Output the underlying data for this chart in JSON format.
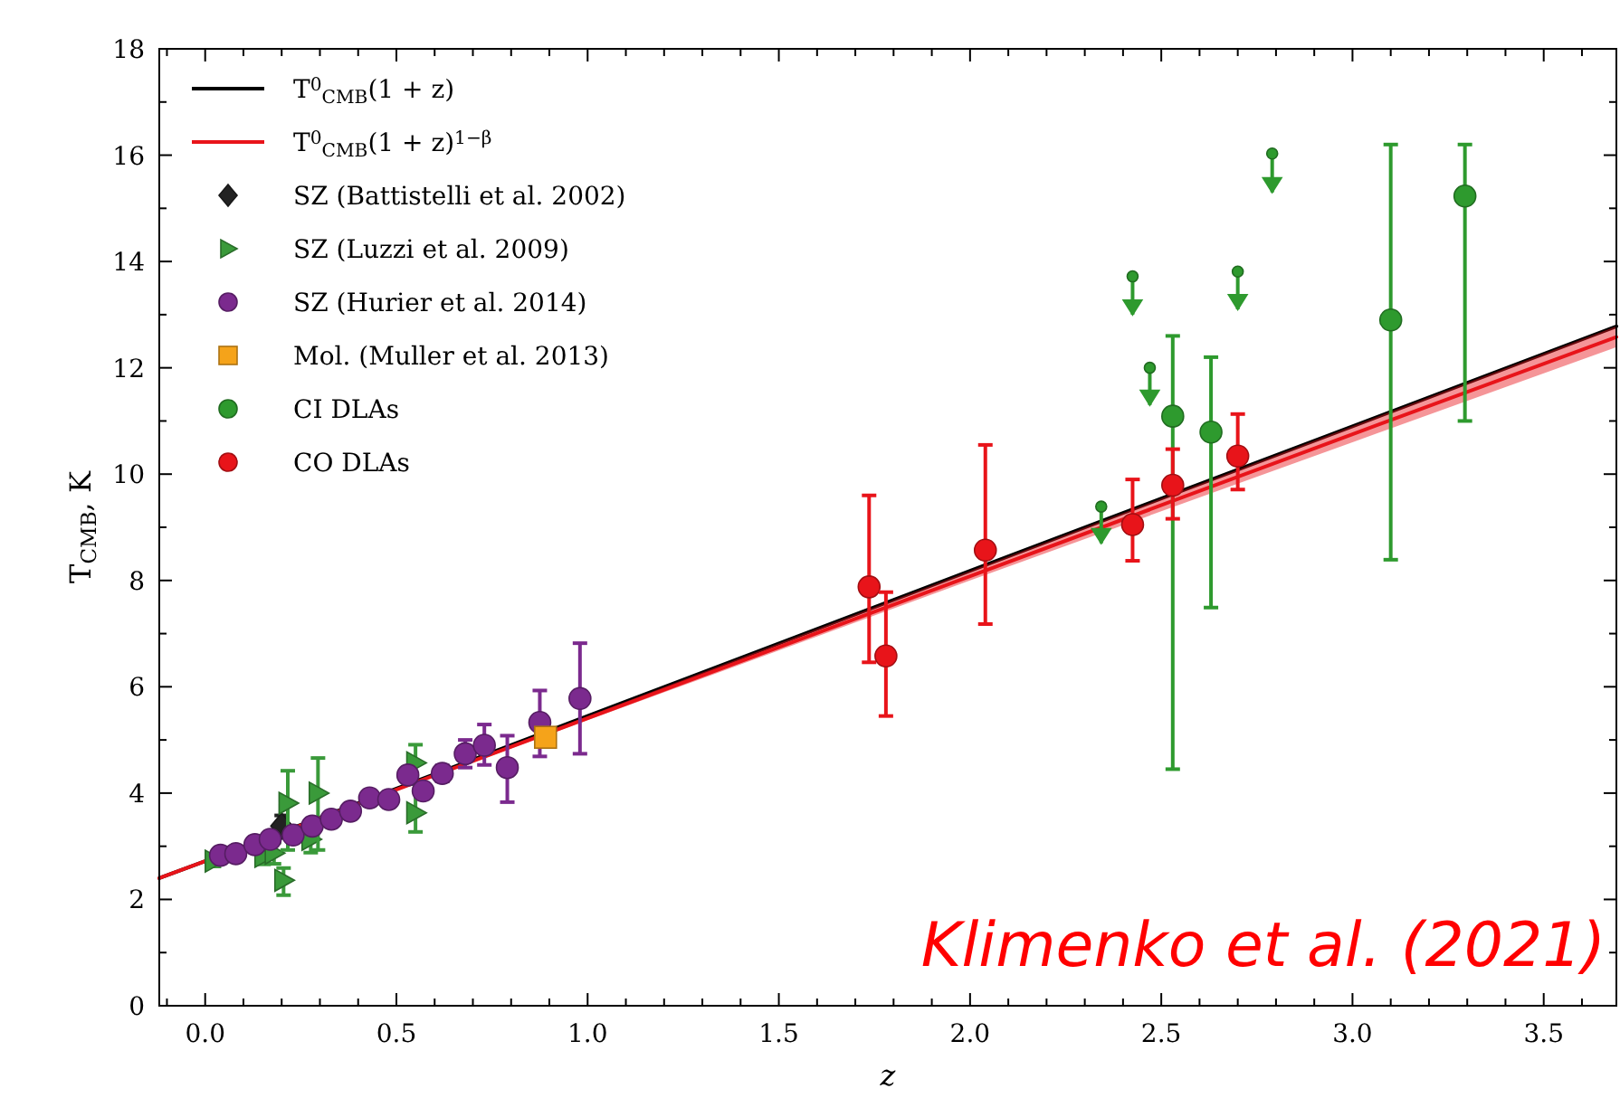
{
  "chart_data": {
    "type": "scatter",
    "xlabel": "z",
    "ylabel": "T$_{CMB}$, K",
    "xlim": [
      -0.12,
      3.69
    ],
    "ylim": [
      0,
      18
    ],
    "xticks": [
      {
        "value": 0,
        "label": "0.0"
      },
      {
        "value": 0.5,
        "label": "0.5"
      },
      {
        "value": 1,
        "label": "1.0"
      },
      {
        "value": 1.5,
        "label": "1.5"
      },
      {
        "value": 2,
        "label": "2.0"
      },
      {
        "value": 2.5,
        "label": "2.5"
      },
      {
        "value": 3,
        "label": "3.0"
      },
      {
        "value": 3.5,
        "label": "3.5"
      },
      {
        "value": -0.1,
        "label": null
      },
      {
        "value": 0.1,
        "label": null
      },
      {
        "value": 0.2,
        "label": null
      },
      {
        "value": 0.3,
        "label": null
      },
      {
        "value": 0.4,
        "label": null
      },
      {
        "value": 0.6,
        "label": null
      },
      {
        "value": 0.7,
        "label": null
      },
      {
        "value": 0.8,
        "label": null
      },
      {
        "value": 0.9,
        "label": null
      },
      {
        "value": 1.1,
        "label": null
      },
      {
        "value": 1.2,
        "label": null
      },
      {
        "value": 1.3,
        "label": null
      },
      {
        "value": 1.4,
        "label": null
      },
      {
        "value": 1.6,
        "label": null
      },
      {
        "value": 1.7,
        "label": null
      },
      {
        "value": 1.8,
        "label": null
      },
      {
        "value": 1.9,
        "label": null
      },
      {
        "value": 2.1,
        "label": null
      },
      {
        "value": 2.2,
        "label": null
      },
      {
        "value": 2.3,
        "label": null
      },
      {
        "value": 2.4,
        "label": null
      },
      {
        "value": 2.6,
        "label": null
      },
      {
        "value": 2.7,
        "label": null
      },
      {
        "value": 2.8,
        "label": null
      },
      {
        "value": 2.9,
        "label": null
      },
      {
        "value": 3.1,
        "label": null
      },
      {
        "value": 3.2,
        "label": null
      },
      {
        "value": 3.3,
        "label": null
      },
      {
        "value": 3.4,
        "label": null
      },
      {
        "value": 3.6,
        "label": null
      }
    ],
    "yticks": [
      0,
      2,
      4,
      6,
      8,
      10,
      12,
      14,
      16,
      18,
      {
        "value": 1,
        "label": null
      },
      {
        "value": 3,
        "label": null
      },
      {
        "value": 5,
        "label": null
      },
      {
        "value": 7,
        "label": null
      },
      {
        "value": 9,
        "label": null
      },
      {
        "value": 11,
        "label": null
      },
      {
        "value": 13,
        "label": null
      },
      {
        "value": 15,
        "label": null
      },
      {
        "value": 17,
        "label": null
      }
    ],
    "legend": "top left",
    "annotations": [
      "Klimenko et al. (2021)"
    ],
    "series": [
      {
        "type": "line",
        "name": "T$^{0}$$_{CMB}$(1 + z)",
        "color": "#000000",
        "x": [
          -0.12,
          0,
          1,
          2,
          3,
          3.69
        ],
        "values": [
          2.4,
          2.72,
          5.45,
          8.18,
          10.9,
          12.78
        ]
      },
      {
        "type": "line",
        "name": "T$^{0}$$_{CMB}$(1 + z)$^{1−β}$",
        "color": "#e8141a",
        "x": [
          -0.12,
          0,
          1,
          2,
          3,
          3.69
        ],
        "values": [
          2.4,
          2.72,
          5.41,
          8.08,
          10.75,
          12.58
        ],
        "lower": [
          2.4,
          2.72,
          5.37,
          8.0,
          10.6,
          12.39
        ],
        "upper": [
          2.4,
          2.72,
          5.45,
          8.18,
          10.9,
          12.78
        ]
      },
      {
        "name": "SZ (Battistelli et al. 2002)",
        "color": "#222222",
        "marker": "diamond",
        "x": [
          0.2
        ],
        "values": [
          3.38
        ],
        "errors": [
          0.2
        ]
      },
      {
        "name": "SZ (Luzzi et al. 2009)",
        "color": "#3a9a3a",
        "marker": "triangle",
        "x": [
          0.023,
          0.153,
          0.18,
          0.205,
          0.216,
          0.276,
          0.295,
          0.55,
          0.55
        ],
        "values": [
          2.72,
          2.81,
          2.87,
          2.36,
          3.81,
          3.13,
          4.0,
          4.57,
          3.63
        ],
        "errors": [
          0.1,
          0.15,
          0.2,
          [
            2.08,
            2.59
          ],
          [
            2.93,
            4.42
          ],
          0.25,
          [
            2.93,
            4.66
          ],
          [
            4.17,
            4.91
          ],
          [
            3.27,
            4.17
          ]
        ]
      },
      {
        "name": "SZ (Hurier et al. 2014)",
        "color": "#7b2a8e",
        "marker": "circle",
        "x": [
          0.04,
          0.08,
          0.13,
          0.17,
          0.23,
          0.28,
          0.33,
          0.38,
          0.43,
          0.48,
          0.53,
          0.57,
          0.62,
          0.68,
          0.73,
          0.79,
          0.875,
          0.98
        ],
        "values": [
          2.83,
          2.86,
          3.03,
          3.13,
          3.21,
          3.38,
          3.51,
          3.66,
          3.91,
          3.88,
          4.34,
          4.04,
          4.37,
          4.74,
          4.9,
          4.48,
          5.33,
          5.78
        ],
        "errors": [
          null,
          null,
          null,
          null,
          null,
          null,
          null,
          null,
          0.1,
          0.1,
          null,
          null,
          0.15,
          0.26,
          [
            4.53,
            5.29
          ],
          [
            3.83,
            5.08
          ],
          [
            4.69,
            5.93
          ],
          [
            4.74,
            6.82
          ]
        ]
      },
      {
        "name": "Mol. (Muller et al. 2013)",
        "color": "#f5a31a",
        "marker": "square",
        "x": [
          0.89
        ],
        "values": [
          5.05
        ],
        "errors": [
          0.1
        ]
      },
      {
        "name": "CI DLAs",
        "color": "#2e9a2e",
        "marker": "circle",
        "x": [
          2.53,
          2.63,
          3.1,
          3.294
        ],
        "values": [
          11.09,
          10.79,
          12.9,
          15.23
        ],
        "errors": [
          [
            4.45,
            12.6
          ],
          [
            7.49,
            12.2
          ],
          [
            8.39,
            16.2
          ],
          [
            11.0,
            16.2
          ]
        ]
      },
      {
        "color": "#2e9a2e",
        "marker": "circle",
        "x": [
          2.343,
          2.425,
          2.47,
          2.7,
          2.79
        ],
        "values": [
          9.39,
          13.72,
          12.0,
          13.81,
          16.03
        ],
        "errors": [
          [
            8.7,
            9.39
          ],
          [
            13.0,
            13.72
          ],
          [
            11.3,
            12.0
          ],
          [
            13.1,
            13.81
          ],
          [
            15.3,
            16.03
          ]
        ]
      },
      {
        "name": "CO DLAs",
        "color": "#e8141a",
        "marker": "circle",
        "x": [
          1.736,
          1.78,
          2.04,
          2.425,
          2.53,
          2.7
        ],
        "values": [
          7.88,
          6.58,
          8.57,
          9.05,
          9.79,
          10.34
        ],
        "errors": [
          [
            6.46,
            9.6
          ],
          [
            5.45,
            7.78
          ],
          [
            7.18,
            10.55
          ],
          [
            8.37,
            9.9
          ],
          [
            9.16,
            10.47
          ],
          [
            9.71,
            11.13
          ]
        ]
      }
    ]
  }
}
